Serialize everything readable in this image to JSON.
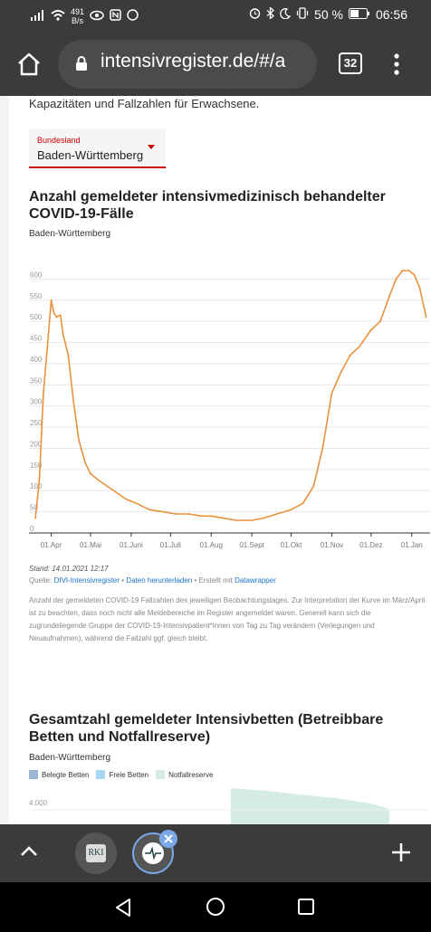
{
  "status": {
    "speed_value": "491",
    "speed_unit": "B/s",
    "battery": "50 %",
    "time": "06:56"
  },
  "browser": {
    "url": "intensivregister.de/#/a",
    "tab_count": "32"
  },
  "intro": {
    "text": "Kapazitäten und Fallzahlen für Erwachsene."
  },
  "state_select": {
    "label": "Bundesland",
    "value": "Baden-Württemberg"
  },
  "chart1": {
    "title": "Anzahl gemeldeter intensivmedizinisch behandelter COVID-19-Fälle",
    "subtitle": "Baden-Württemberg",
    "stand": "Stand: 14.01.2021 12:17",
    "source_prefix": "Quelle: ",
    "source_link1": "DIVI-Intensivregister",
    "source_sep": " • ",
    "source_link2": "Daten herunterladen",
    "source_mid": " • Erstellt mit ",
    "source_link3": "Datawrapper",
    "note": "Anzahl der gemeldeten COVID-19 Fallzahlen des jeweiligen Beobachtungstages. Zur Interpretation der Kurve im März/April ist zu beachten, dass noch nicht alle Meldebereiche im Register angemeldet waren. Generell kann sich die zugrundeliegende Gruppe der COVID-19-Intensivpatient*innen von Tag zu Tag verändern (Verlegungen und Neuaufnahmen), während die Fallzahl ggf. gleich bleibt."
  },
  "chart2": {
    "title": "Gesamtzahl gemeldeter Intensivbetten (Betreibbare Betten und Notfallreserve)",
    "subtitle": "Baden-Württemberg",
    "legend": [
      {
        "label": "Belegte Betten",
        "color": "#9fb5d6"
      },
      {
        "label": "Freie Betten",
        "color": "#a9d6f2"
      },
      {
        "label": "Notfallreserve",
        "color": "#d5ece3"
      }
    ],
    "first_tick": "4.000"
  },
  "chart_data": {
    "type": "line",
    "title": "Anzahl gemeldeter intensivmedizinisch behandelter COVID-19-Fälle",
    "subtitle": "Baden-Württemberg",
    "color": "#e8913e",
    "ylim": [
      0,
      650
    ],
    "y_ticks": [
      "0",
      "50",
      "100",
      "150",
      "200",
      "250",
      "300",
      "350",
      "400",
      "450",
      "500",
      "550",
      "600"
    ],
    "x_ticks": [
      "01.Apr",
      "01.Mai",
      "01.Juni",
      "01.Juli",
      "01.Aug",
      "01.Sept",
      "01.Okt",
      "01.Nov",
      "01.Dez",
      "01.Jan"
    ],
    "grid": "horizontal",
    "series": [
      {
        "x": [
          "2020-03-20",
          "2020-03-23",
          "2020-03-26",
          "2020-03-29",
          "2020-04-01",
          "2020-04-03",
          "2020-04-05",
          "2020-04-08",
          "2020-04-10",
          "2020-04-14",
          "2020-04-18",
          "2020-04-22",
          "2020-04-27",
          "2020-05-01",
          "2020-05-07",
          "2020-05-14",
          "2020-05-21",
          "2020-05-28",
          "2020-06-05",
          "2020-06-15",
          "2020-06-25",
          "2020-07-05",
          "2020-07-15",
          "2020-07-25",
          "2020-08-01",
          "2020-08-10",
          "2020-08-20",
          "2020-09-01",
          "2020-09-10",
          "2020-09-20",
          "2020-10-01",
          "2020-10-10",
          "2020-10-18",
          "2020-10-25",
          "2020-11-01",
          "2020-11-08",
          "2020-11-15",
          "2020-11-22",
          "2020-12-01",
          "2020-12-08",
          "2020-12-15",
          "2020-12-20",
          "2020-12-25",
          "2020-12-30",
          "2021-01-03",
          "2021-01-07",
          "2021-01-12"
        ],
        "y": [
          35,
          130,
          330,
          440,
          550,
          520,
          510,
          515,
          470,
          420,
          310,
          220,
          165,
          140,
          125,
          110,
          95,
          80,
          70,
          55,
          50,
          45,
          45,
          40,
          40,
          35,
          30,
          30,
          35,
          45,
          55,
          70,
          110,
          200,
          330,
          380,
          420,
          440,
          480,
          500,
          560,
          600,
          620,
          620,
          610,
          580,
          510
        ]
      }
    ]
  }
}
